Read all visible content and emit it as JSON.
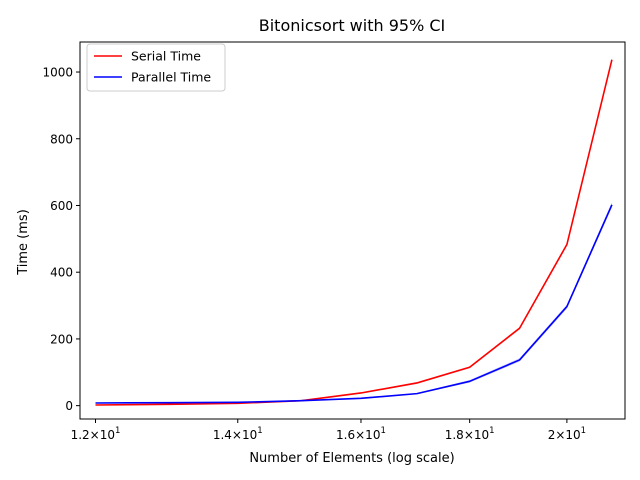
{
  "chart_data": {
    "type": "line",
    "title": "Bitonicsort with 95% CI",
    "xlabel": "Number of Elements (log scale)",
    "ylabel": "Time (ms)",
    "x_scale": "log",
    "xlim": [
      11.8,
      21.3
    ],
    "ylim": [
      -40,
      1090
    ],
    "x": [
      12,
      13,
      14,
      15,
      16,
      17,
      18,
      19,
      20,
      21
    ],
    "x_ticks": [
      {
        "value": 12,
        "mantissa": "1.2",
        "base": "10",
        "exp": "1"
      },
      {
        "value": 14,
        "mantissa": "1.4",
        "base": "10",
        "exp": "1"
      },
      {
        "value": 16,
        "mantissa": "1.6",
        "base": "10",
        "exp": "1"
      },
      {
        "value": 18,
        "mantissa": "1.8",
        "base": "10",
        "exp": "1"
      },
      {
        "value": 20,
        "mantissa": "2",
        "base": "10",
        "exp": "1"
      }
    ],
    "y_ticks": [
      0,
      200,
      400,
      600,
      800,
      1000
    ],
    "series": [
      {
        "name": "Serial Time",
        "color": "#ff0000",
        "values": [
          2,
          4,
          7,
          15,
          38,
          68,
          115,
          232,
          483,
          1037
        ],
        "ci_halfwidth": [
          1,
          1,
          1,
          1,
          2,
          3,
          3,
          4,
          5,
          6
        ]
      },
      {
        "name": "Parallel Time",
        "color": "#0000ff",
        "values": [
          8,
          9,
          10,
          15,
          22,
          36,
          73,
          137,
          297,
          602
        ],
        "ci_halfwidth": [
          1,
          1,
          1,
          1,
          2,
          2,
          4,
          5,
          6,
          8
        ]
      }
    ],
    "legend_position": "top-left",
    "grid": false
  }
}
